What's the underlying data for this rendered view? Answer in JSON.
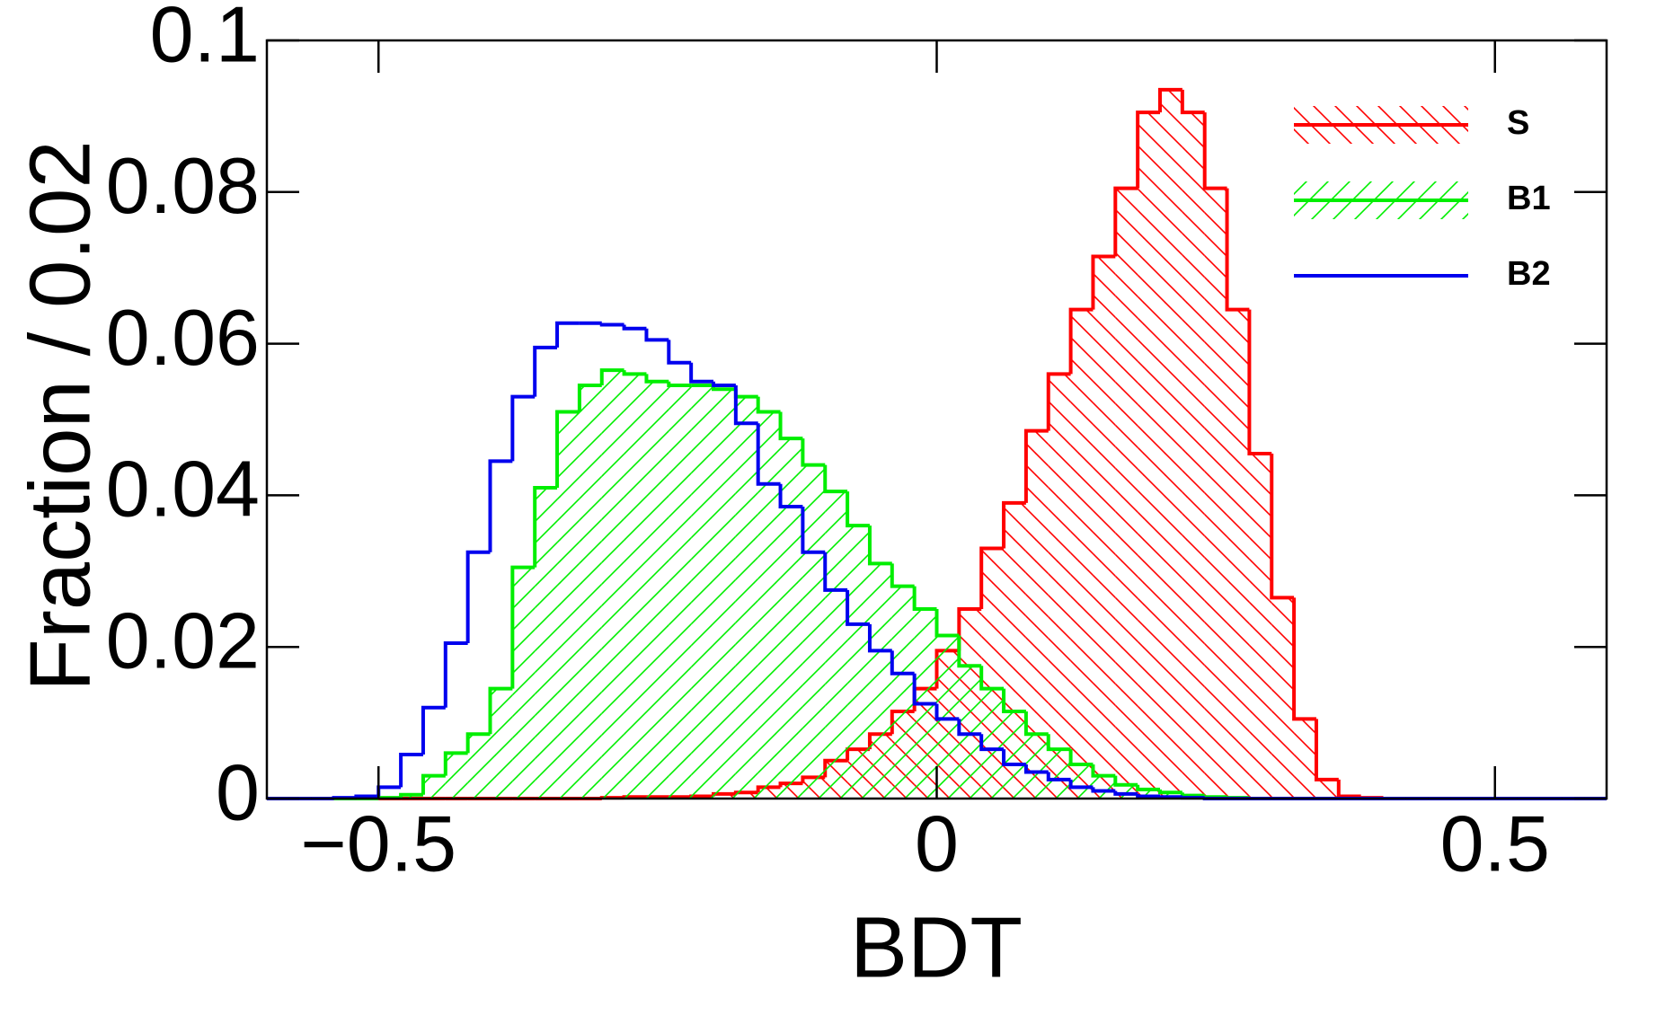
{
  "chart_data": {
    "type": "histogram",
    "xlabel": "BDT",
    "ylabel": "Fraction / 0.02",
    "bins": [
      -0.6,
      -0.58,
      -0.56,
      -0.54,
      -0.52,
      -0.5,
      -0.48,
      -0.46,
      -0.44,
      -0.42,
      -0.4,
      -0.38,
      -0.36,
      -0.34,
      -0.32,
      -0.3,
      -0.28,
      -0.26,
      -0.24,
      -0.22,
      -0.2,
      -0.18,
      -0.16,
      -0.14,
      -0.12,
      -0.1,
      -0.08,
      -0.06,
      -0.04,
      -0.02,
      0,
      0.02,
      0.04,
      0.06,
      0.08,
      0.1,
      0.12,
      0.14,
      0.16,
      0.18,
      0.2,
      0.22,
      0.24,
      0.26,
      0.28,
      0.3,
      0.32,
      0.34,
      0.36,
      0.38,
      0.4,
      0.42,
      0.44,
      0.46,
      0.48,
      0.5,
      0.52,
      0.54,
      0.56,
      0.58,
      0.6
    ],
    "series": [
      {
        "name": "S",
        "color": "#ff0000",
        "hatch": "backslash",
        "values": [
          0,
          0,
          0,
          0,
          0,
          0,
          0,
          0,
          0,
          0,
          0,
          0,
          0,
          0,
          0,
          0.0001,
          0.0002,
          0.0002,
          0.0002,
          0.0003,
          0.0006,
          0.0008,
          0.0015,
          0.002,
          0.0028,
          0.005,
          0.0065,
          0.0085,
          0.0115,
          0.0145,
          0.0195,
          0.025,
          0.033,
          0.039,
          0.0485,
          0.056,
          0.0645,
          0.0715,
          0.0805,
          0.0905,
          0.0935,
          0.0905,
          0.0805,
          0.0645,
          0.0455,
          0.0265,
          0.0105,
          0.0025,
          0.0003,
          0.0001,
          0,
          0,
          0,
          0,
          0,
          0,
          0,
          0,
          0,
          0
        ]
      },
      {
        "name": "B1",
        "color": "#00ee00",
        "hatch": "slash",
        "values": [
          0,
          0,
          0,
          0,
          0,
          0.0001,
          0.0005,
          0.003,
          0.006,
          0.0085,
          0.0145,
          0.0305,
          0.041,
          0.051,
          0.0545,
          0.0565,
          0.056,
          0.055,
          0.0545,
          0.0545,
          0.054,
          0.053,
          0.051,
          0.0475,
          0.044,
          0.0405,
          0.036,
          0.031,
          0.028,
          0.025,
          0.0215,
          0.0175,
          0.0145,
          0.0115,
          0.0085,
          0.0065,
          0.0045,
          0.003,
          0.0018,
          0.0012,
          0.0008,
          0.0004,
          0.0002,
          0.0001,
          0,
          0,
          0,
          0,
          0,
          0,
          0,
          0,
          0,
          0,
          0,
          0,
          0,
          0,
          0,
          0
        ]
      },
      {
        "name": "B2",
        "color": "#0000ee",
        "hatch": "none",
        "values": [
          0,
          0,
          0,
          0.0001,
          0.0003,
          0.0015,
          0.0058,
          0.012,
          0.0205,
          0.0325,
          0.0445,
          0.053,
          0.0595,
          0.0627,
          0.0627,
          0.0625,
          0.062,
          0.0605,
          0.0575,
          0.055,
          0.0545,
          0.0495,
          0.0415,
          0.0385,
          0.0325,
          0.0275,
          0.023,
          0.0195,
          0.0165,
          0.0125,
          0.0105,
          0.0085,
          0.0065,
          0.0045,
          0.0035,
          0.0025,
          0.0015,
          0.001,
          0.0006,
          0.0003,
          0.0002,
          0.0001,
          0,
          0,
          0,
          0,
          0,
          0,
          0,
          0,
          0,
          0,
          0,
          0,
          0,
          0,
          0,
          0,
          0,
          0
        ]
      }
    ],
    "xlim": [
      -0.6,
      0.6
    ],
    "xticks": [
      {
        "value": -0.5,
        "label": "−0.5"
      },
      0,
      0.5
    ],
    "ylim": [
      0,
      0.1
    ],
    "yticks": [
      0,
      0.02,
      0.04,
      0.06,
      0.08,
      0.1
    ],
    "grid": false,
    "legend": "upper right"
  }
}
